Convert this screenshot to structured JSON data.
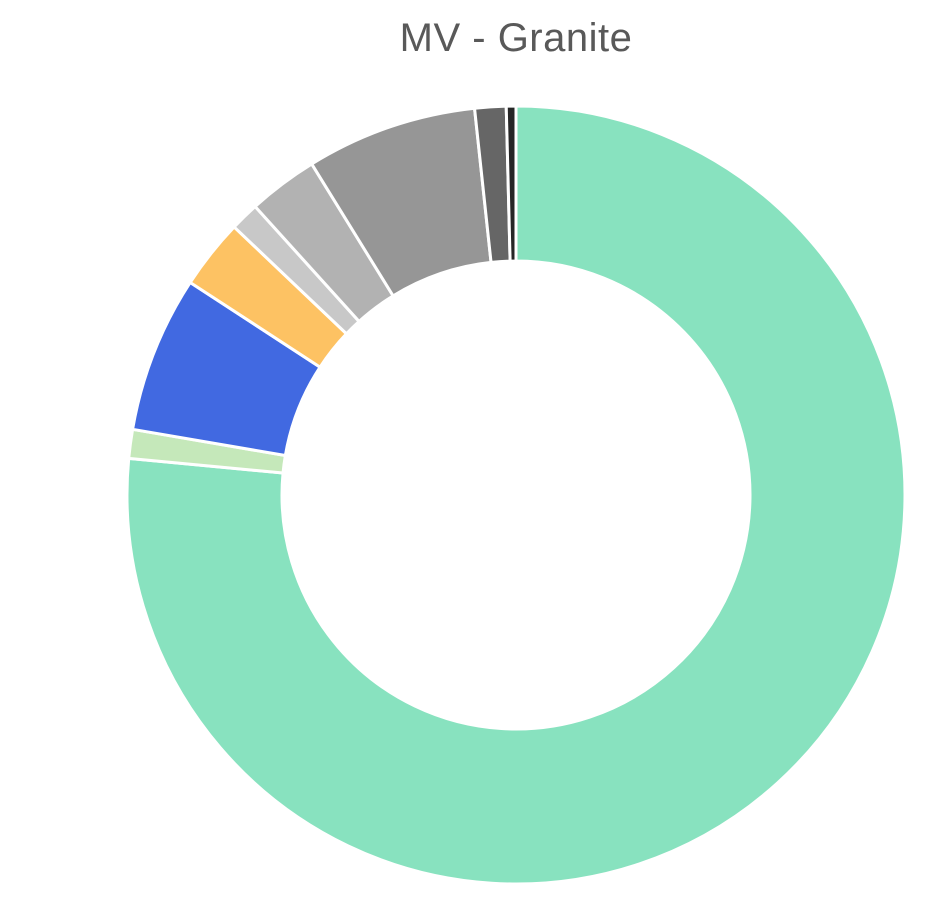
{
  "chart_data": {
    "type": "pie",
    "variant": "donut",
    "title": "MV - Granite",
    "legend": "none",
    "start": "top",
    "direction": "clockwise",
    "slices": [
      {
        "value": 76.5,
        "color": "#88E2BF"
      },
      {
        "value": 1.2,
        "color": "#C5E8BA"
      },
      {
        "value": 6.5,
        "color": "#4169E1"
      },
      {
        "value": 2.9,
        "color": "#FDC263"
      },
      {
        "value": 1.2,
        "color": "#C8C8C8"
      },
      {
        "value": 2.9,
        "color": "#B2B2B2"
      },
      {
        "value": 7.1,
        "color": "#969696"
      },
      {
        "value": 1.3,
        "color": "#666666"
      },
      {
        "value": 0.4,
        "color": "#262626"
      }
    ]
  }
}
